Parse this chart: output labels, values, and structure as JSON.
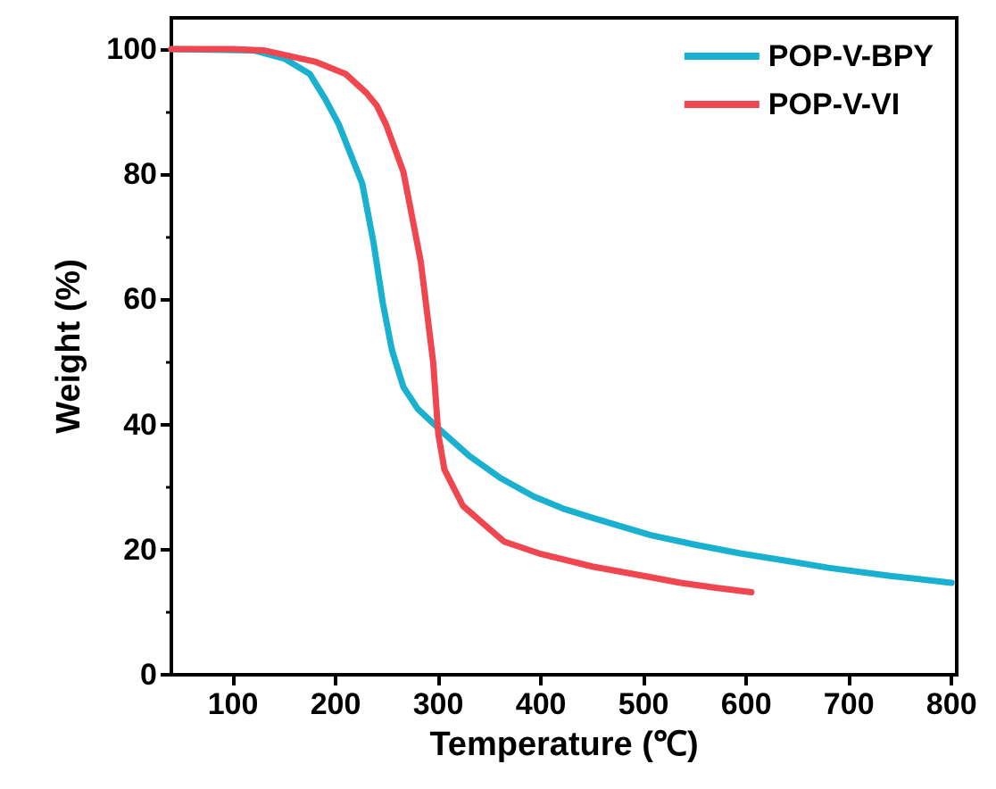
{
  "chart_data": {
    "type": "line",
    "xlabel": "Temperature (℃)",
    "ylabel": "Weight (%)",
    "xlim": [
      40,
      805
    ],
    "xticks": [
      100,
      200,
      300,
      400,
      500,
      600,
      700,
      800
    ],
    "ylim": [
      0,
      105
    ],
    "yticks": [
      0,
      20,
      40,
      60,
      80,
      100
    ],
    "grid": false,
    "legend": "top right",
    "marker": "none",
    "line_style": "solid",
    "series": [
      {
        "name": "POP-V-BPY",
        "color": "#1ab0cf",
        "x": [
          40,
          120,
          150,
          175,
          190,
          203,
          226,
          237,
          246,
          255,
          266,
          280,
          300,
          330,
          360,
          393,
          421,
          450,
          507,
          550,
          594,
          640,
          680,
          740,
          800
        ],
        "values": [
          100,
          99.8,
          98.5,
          96,
          92,
          88,
          78.5,
          69,
          59.4,
          51.8,
          46,
          42.5,
          39.4,
          35,
          31.5,
          28.5,
          26.6,
          25.1,
          22.3,
          20.8,
          19.4,
          18.2,
          17.1,
          15.8,
          14.7
        ]
      },
      {
        "name": "POP-V-VI",
        "color": "#f04650",
        "x": [
          40,
          100,
          130,
          180,
          210,
          230,
          240,
          249,
          266,
          283,
          295,
          300,
          306,
          324,
          345,
          364,
          400,
          450,
          500,
          536,
          570,
          605
        ],
        "values": [
          100,
          100,
          99.8,
          98,
          96,
          93,
          91,
          88,
          80.4,
          66,
          50,
          38.5,
          32.8,
          27,
          24,
          21.3,
          19.3,
          17.3,
          15.8,
          14.7,
          13.9,
          13.2
        ]
      }
    ]
  }
}
